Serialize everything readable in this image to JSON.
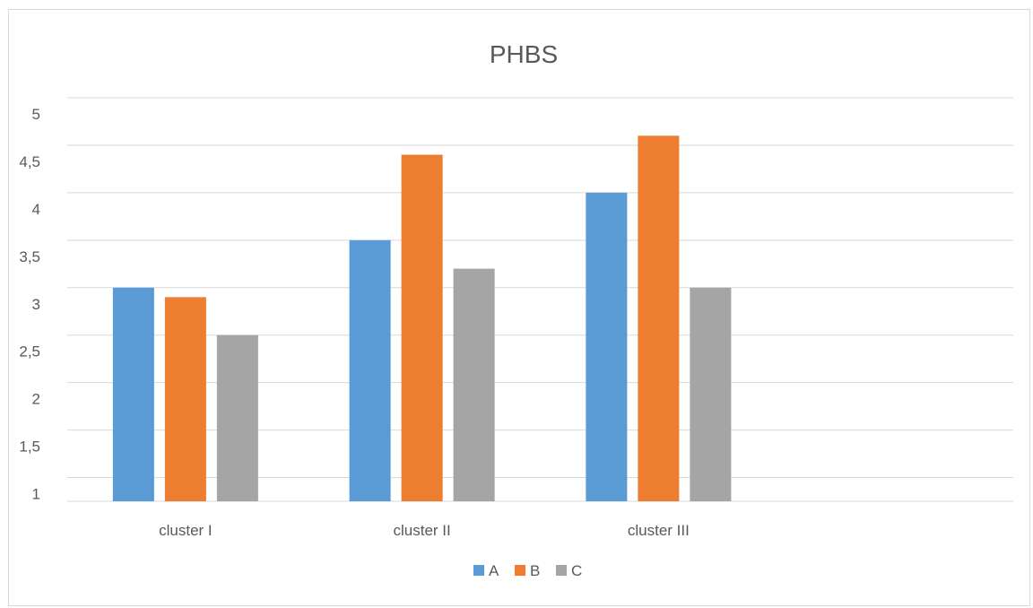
{
  "chart_data": {
    "type": "bar",
    "title": "PHBS",
    "xlabel": "",
    "ylabel": "",
    "categories": [
      "cluster I",
      "cluster II",
      "cluster III",
      ""
    ],
    "series": [
      {
        "name": "A",
        "values": [
          3.0,
          3.5,
          4.0,
          null
        ]
      },
      {
        "name": "B",
        "values": [
          2.9,
          4.4,
          4.6,
          null
        ]
      },
      {
        "name": "C",
        "values": [
          2.5,
          3.2,
          3.0,
          null
        ]
      }
    ],
    "yticks": [
      "1",
      "1,5",
      "2",
      "2,5",
      "3",
      "3,5",
      "4",
      "4,5",
      "5"
    ],
    "ytick_values": [
      1,
      1.5,
      2,
      2.5,
      3,
      3.5,
      4,
      4.5,
      5
    ],
    "ylim": [
      0.75,
      5
    ],
    "grid": true,
    "legend_position": "bottom"
  },
  "colors": {
    "A": "#5b9bd5",
    "B": "#ed7d31",
    "C": "#a5a5a5",
    "grid": "#d9d9d9",
    "text": "#595959"
  }
}
